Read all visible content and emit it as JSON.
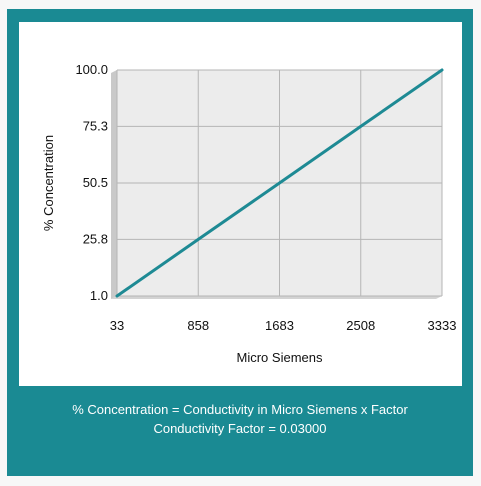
{
  "colors": {
    "panel": "#1a8a93",
    "line": "#1e8a94",
    "plot_bg": "#ececec",
    "grid": "#b5b5b5"
  },
  "footer": {
    "formula": "% Concentration = Conductivity in Micro Siemens x Factor",
    "factor": "Conductivity Factor = 0.03000"
  },
  "chart_data": {
    "type": "line",
    "title": "",
    "xlabel": "Micro Siemens",
    "ylabel": "% Concentration",
    "x_ticks": [
      "33",
      "858",
      "1683",
      "2508",
      "3333"
    ],
    "y_ticks": [
      "1.0",
      "25.8",
      "50.5",
      "75.3",
      "100.0"
    ],
    "xlim": [
      33,
      3333
    ],
    "ylim": [
      1.0,
      100.0
    ],
    "grid": true,
    "legend": "none",
    "series": [
      {
        "x": [
          33,
          858,
          1683,
          2508,
          3333
        ],
        "y": [
          1.0,
          25.8,
          50.5,
          75.3,
          100.0
        ]
      }
    ]
  }
}
